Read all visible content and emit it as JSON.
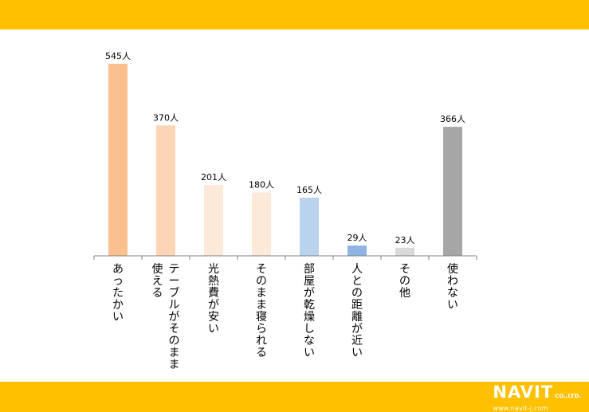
{
  "theme": {
    "band_color": "#FFC000",
    "axis_color": "#808080",
    "label_color": "#000000"
  },
  "logo": {
    "name": "NAVIT",
    "suffix": "CO.,LTD.",
    "url": "www.navit-j.com"
  },
  "chart_data": {
    "type": "bar",
    "categories": [
      "あったかい",
      "テーブルがそのまま使える",
      "光熱費が安い",
      "そのまま寝られる",
      "部屋が乾燥しない",
      "人との距離が近い",
      "その他",
      "使わない"
    ],
    "category_label_lines": [
      [
        "あったかい"
      ],
      [
        "テーブルがそのまま",
        "使える"
      ],
      [
        "光熱費が安い"
      ],
      [
        "そのまま寝られる"
      ],
      [
        "部屋が乾燥しない"
      ],
      [
        "人との距離が近い"
      ],
      [
        "その他"
      ],
      [
        "使わない"
      ]
    ],
    "values": [
      545,
      370,
      201,
      180,
      165,
      29,
      23,
      366
    ],
    "value_labels": [
      "545人",
      "370人",
      "201人",
      "180人",
      "165人",
      "29人",
      "23人",
      "366人"
    ],
    "colors": [
      "#FAC090",
      "#FBD5B5",
      "#FDE9D9",
      "#FDE9D9",
      "#B9D3EE",
      "#8DB4E2",
      "#D9D9D9",
      "#A6A6A6"
    ],
    "unit": "人",
    "ylim": [
      0,
      545
    ],
    "grid": false
  }
}
